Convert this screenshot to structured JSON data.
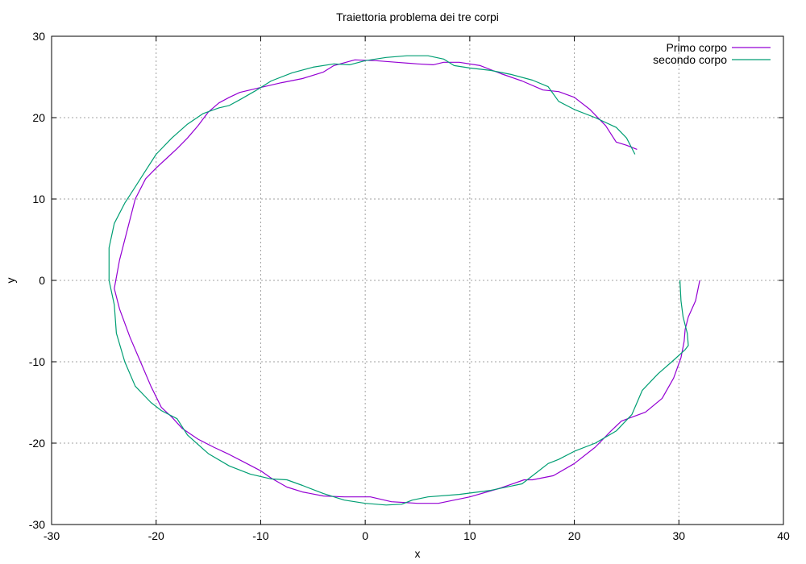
{
  "chart_data": {
    "type": "line",
    "title": "Traiettoria problema dei tre corpi",
    "xlabel": "x",
    "ylabel": "y",
    "xlim": [
      -30,
      40
    ],
    "ylim": [
      -30,
      30
    ],
    "xticks": [
      -30,
      -20,
      -10,
      0,
      10,
      20,
      30,
      40
    ],
    "yticks": [
      -30,
      -20,
      -10,
      0,
      10,
      20,
      30
    ],
    "grid": true,
    "legend_position": "top-right",
    "series": [
      {
        "name": "Primo corpo",
        "color": "#9400d3",
        "x": [
          32,
          31.6,
          30.9,
          30.6,
          30.5,
          30.2,
          29.5,
          28.4,
          26.8,
          25.1,
          24.5,
          23.5,
          22.0,
          20.0,
          18.0,
          16.0,
          15.2,
          13.0,
          10.0,
          7.0,
          5.0,
          2.5,
          0.5,
          -2.0,
          -4.0,
          -6.0,
          -7.5,
          -9.0,
          -10.0,
          -11.5,
          -13.0,
          -14.5,
          -16.0,
          -17.5,
          -18.5,
          -19.5,
          -20.5,
          -21.5,
          -22.5,
          -23.5,
          -24.0,
          -23.5,
          -22.0,
          -21.0,
          -20.0,
          -19.0,
          -18.0,
          -17.0,
          -16.0,
          -15.0,
          -14.0,
          -13.0,
          -12.0,
          -10.0,
          -8.0,
          -6.0,
          -4.0,
          -3.0,
          -1.0,
          1.0,
          3.0,
          5.0,
          6.5,
          7.5,
          9.0,
          11.0,
          13.0,
          15.0,
          17.0,
          18.5,
          20.0,
          21.5,
          23.0,
          24.0,
          25.0,
          26.0
        ],
        "y": [
          0,
          -2.5,
          -4.5,
          -6.0,
          -7.5,
          -9.5,
          -12.0,
          -14.5,
          -16.2,
          -17.0,
          -17.3,
          -18.5,
          -20.5,
          -22.5,
          -24.0,
          -24.5,
          -24.5,
          -25.5,
          -26.6,
          -27.4,
          -27.4,
          -27.2,
          -26.6,
          -26.6,
          -26.5,
          -26.0,
          -25.4,
          -24.3,
          -23.4,
          -22.4,
          -21.4,
          -20.5,
          -19.5,
          -18.2,
          -16.8,
          -15.6,
          -13.0,
          -10.0,
          -7.0,
          -3.5,
          -1.0,
          2.5,
          10.0,
          12.5,
          13.8,
          15.0,
          16.2,
          17.5,
          19.0,
          20.7,
          21.8,
          22.5,
          23.1,
          23.7,
          24.3,
          24.8,
          25.6,
          26.4,
          27.1,
          27.0,
          26.8,
          26.6,
          26.5,
          26.8,
          26.8,
          26.4,
          25.4,
          24.5,
          23.4,
          23.2,
          22.5,
          21.0,
          19.0,
          17.0,
          16.6,
          16.1
        ]
      },
      {
        "name": "secondo corpo",
        "color": "#009e73",
        "x": [
          30.1,
          30.2,
          30.4,
          30.8,
          30.9,
          30.6,
          29.5,
          28.0,
          26.5,
          26.0,
          25.5,
          24.0,
          22.0,
          20.0,
          18.5,
          17.5,
          16.5,
          15.0,
          12.0,
          9.0,
          6.0,
          4.5,
          3.5,
          2.0,
          0.0,
          -2.0,
          -4.0,
          -6.0,
          -7.5,
          -9.0,
          -11.0,
          -13.0,
          -15.0,
          -17.0,
          -18.0,
          -19.5,
          -20.5,
          -22.0,
          -23.0,
          -23.8,
          -24.0,
          -24.5,
          -24.5,
          -24.0,
          -23.0,
          -22.0,
          -21.0,
          -20.0,
          -18.5,
          -17.0,
          -15.5,
          -14.0,
          -13.0,
          -12.0,
          -10.5,
          -9.0,
          -7.0,
          -5.0,
          -3.0,
          -1.5,
          0.0,
          2.0,
          4.0,
          6.0,
          7.5,
          8.5,
          10.0,
          12.0,
          14.0,
          16.0,
          17.5,
          18.5,
          20.0,
          22.0,
          24.0,
          25.0,
          25.8
        ],
        "y": [
          0,
          -2.5,
          -4.5,
          -6.5,
          -8.0,
          -8.5,
          -9.8,
          -11.5,
          -13.5,
          -15.0,
          -16.5,
          -18.5,
          -20.0,
          -21.0,
          -22.0,
          -22.5,
          -23.5,
          -25.0,
          -25.8,
          -26.3,
          -26.6,
          -27.0,
          -27.5,
          -27.6,
          -27.4,
          -27.0,
          -26.2,
          -25.2,
          -24.5,
          -24.4,
          -23.8,
          -22.8,
          -21.3,
          -19.0,
          -17.0,
          -16.0,
          -15.0,
          -13.0,
          -10.0,
          -6.5,
          -3.0,
          0.0,
          4.0,
          7.0,
          9.5,
          11.5,
          13.5,
          15.5,
          17.5,
          19.2,
          20.5,
          21.2,
          21.5,
          22.2,
          23.3,
          24.5,
          25.5,
          26.2,
          26.6,
          26.5,
          27.0,
          27.4,
          27.6,
          27.6,
          27.2,
          26.4,
          26.1,
          25.8,
          25.3,
          24.6,
          23.8,
          22.0,
          21.0,
          20.0,
          18.8,
          17.5,
          15.5
        ]
      }
    ]
  }
}
